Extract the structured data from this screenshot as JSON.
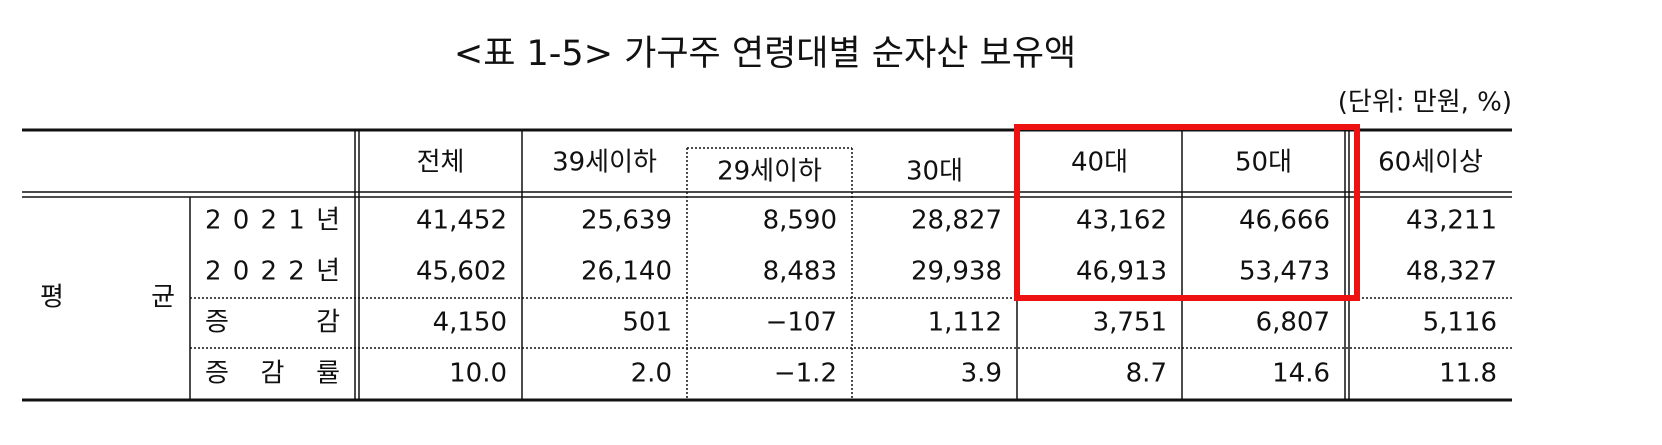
{
  "title": "<표 1-5> 가구주 연령대별 순자산 보유액",
  "unit": "(단위: 만원, %)",
  "table": {
    "columns": [
      "전체",
      "39세이하",
      "29세이하",
      "30대",
      "40대",
      "50대",
      "60세이상"
    ],
    "group_label": "평 균",
    "rows": [
      {
        "label": "2 0 2 1 년",
        "cells": [
          "41,452",
          "25,639",
          "8,590",
          "28,827",
          "43,162",
          "46,666",
          "43,211"
        ]
      },
      {
        "label": "2 0 2 2 년",
        "cells": [
          "45,602",
          "26,140",
          "8,483",
          "29,938",
          "46,913",
          "53,473",
          "48,327"
        ]
      },
      {
        "label": "증 감",
        "cells": [
          "4,150",
          "501",
          "−107",
          "1,112",
          "3,751",
          "6,807",
          "5,116"
        ]
      },
      {
        "label": "증 감 률",
        "cells": [
          "10.0",
          "2.0",
          "−1.2",
          "3.9",
          "8.7",
          "14.6",
          "11.8"
        ]
      }
    ]
  }
}
